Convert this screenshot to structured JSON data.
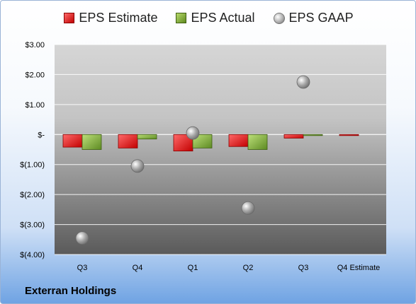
{
  "company": "Exterran Holdings",
  "legend": [
    {
      "label": "EPS Estimate",
      "color": "#d42020"
    },
    {
      "label": "EPS Actual",
      "color": "#7fae3a"
    },
    {
      "label": "EPS GAAP",
      "color": "#a9a9a9"
    }
  ],
  "chart_data": {
    "type": "bar",
    "categories": [
      "Q3",
      "Q4",
      "Q1",
      "Q2",
      "Q3",
      "Q4 Estimate"
    ],
    "series": [
      {
        "name": "EPS Estimate",
        "type": "bar",
        "values": [
          -0.42,
          -0.45,
          -0.55,
          -0.4,
          -0.12,
          -0.03
        ]
      },
      {
        "name": "EPS Actual",
        "type": "bar",
        "values": [
          -0.5,
          -0.15,
          -0.45,
          -0.5,
          -0.02,
          null
        ]
      },
      {
        "name": "EPS GAAP",
        "type": "scatter",
        "values": [
          -3.45,
          -1.05,
          0.05,
          -2.45,
          1.75,
          null
        ]
      }
    ],
    "ylim": [
      -4,
      3
    ],
    "yticks": [
      3,
      2,
      1,
      0,
      -1,
      -2,
      -3,
      -4
    ],
    "ytick_labels": [
      "$3.00",
      "$2.00",
      "$1.00",
      "$-",
      "$(1.00)",
      "$(2.00)",
      "$(3.00)",
      "$(4.00)"
    ],
    "grid": true,
    "legend_position": "top"
  }
}
